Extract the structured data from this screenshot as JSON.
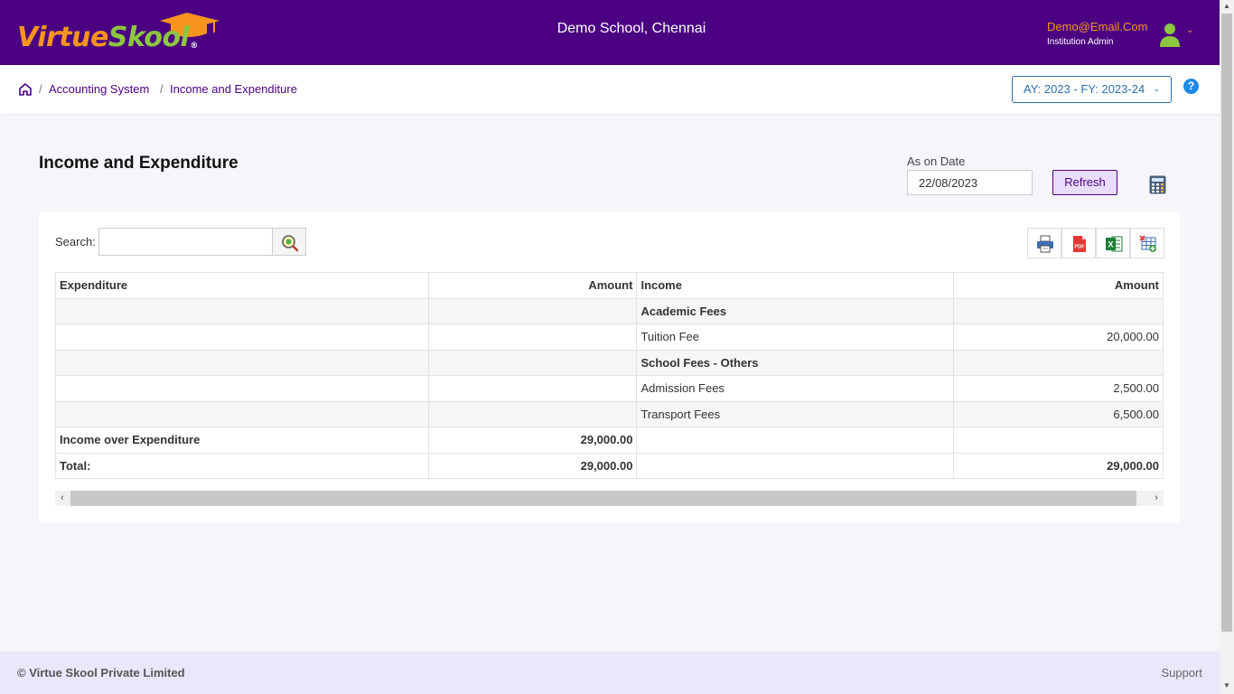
{
  "header": {
    "logo_part1": "Virtue",
    "logo_part2": "Sk",
    "logo_part3": "ool",
    "logo_reg": "®",
    "school_name": "Demo School, Chennai",
    "user_email": "Demo@Email.Com",
    "user_role": "Institution Admin",
    "user_caret": "⌄"
  },
  "breadcrumb": {
    "items": [
      "Accounting System",
      "Income and Expenditure"
    ],
    "separator": "/"
  },
  "academic_year": {
    "label": "AY: 2023 - FY: 2023-24",
    "caret": "⌄"
  },
  "help": {
    "label": "?"
  },
  "page": {
    "title": "Income and Expenditure",
    "date_label": "As on Date",
    "date_value": "22/08/2023",
    "refresh_label": "Refresh"
  },
  "search": {
    "label": "Search:",
    "value": ""
  },
  "toolbar": {
    "icons": [
      "print-icon",
      "pdf-icon",
      "excel-icon",
      "column-visibility-icon"
    ],
    "pdf_text": "PDF",
    "excel_text": "X"
  },
  "table": {
    "headers": [
      "Expenditure",
      "Amount",
      "Income",
      "Amount"
    ],
    "rows": [
      [
        "",
        "",
        "Academic Fees",
        ""
      ],
      [
        "",
        "",
        "Tuition Fee",
        "20,000.00"
      ],
      [
        "",
        "",
        "School Fees - Others",
        ""
      ],
      [
        "",
        "",
        "Admission Fees",
        "2,500.00"
      ],
      [
        "",
        "",
        "Transport Fees",
        "6,500.00"
      ],
      [
        "Income over Expenditure",
        "29,000.00",
        "",
        ""
      ],
      [
        "Total:",
        "29,000.00",
        "",
        "29,000.00"
      ]
    ]
  },
  "scrollbar": {
    "left_arrow": "‹",
    "right_arrow": "›",
    "up_arrow": "▲",
    "down_arrow": "▼"
  },
  "footer": {
    "copyright": "© Virtue Skool Private Limited",
    "support": "Support"
  },
  "colors": {
    "brand_purple": "#4b0082",
    "logo_orange": "#f7941d",
    "logo_green": "#8dc63f",
    "link_blue": "#2a6fb0",
    "help_blue": "#1e88e5",
    "footer_bg": "#ece6fb"
  }
}
